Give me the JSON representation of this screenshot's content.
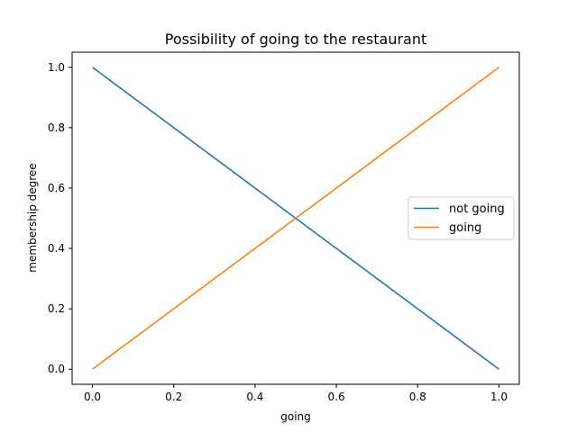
{
  "chart_data": {
    "type": "line",
    "title": "Possibility of going to the restaurant",
    "xlabel": "going",
    "ylabel": "membership degree",
    "xlim": [
      -0.05,
      1.05
    ],
    "ylim": [
      -0.05,
      1.05
    ],
    "xticks": [
      0.0,
      0.2,
      0.4,
      0.6,
      0.8,
      1.0
    ],
    "yticks": [
      0.0,
      0.2,
      0.4,
      0.6,
      0.8,
      1.0
    ],
    "xtick_labels": [
      "0.0",
      "0.2",
      "0.4",
      "0.6",
      "0.8",
      "1.0"
    ],
    "ytick_labels": [
      "0.0",
      "0.2",
      "0.4",
      "0.6",
      "0.8",
      "1.0"
    ],
    "grid": false,
    "legend_position": "center-right",
    "series": [
      {
        "name": "not going",
        "color": "#1f77b4",
        "x": [
          0.0,
          1.0
        ],
        "y": [
          1.0,
          0.0
        ]
      },
      {
        "name": "going",
        "color": "#ff7f0e",
        "x": [
          0.0,
          1.0
        ],
        "y": [
          0.0,
          1.0
        ]
      }
    ]
  }
}
